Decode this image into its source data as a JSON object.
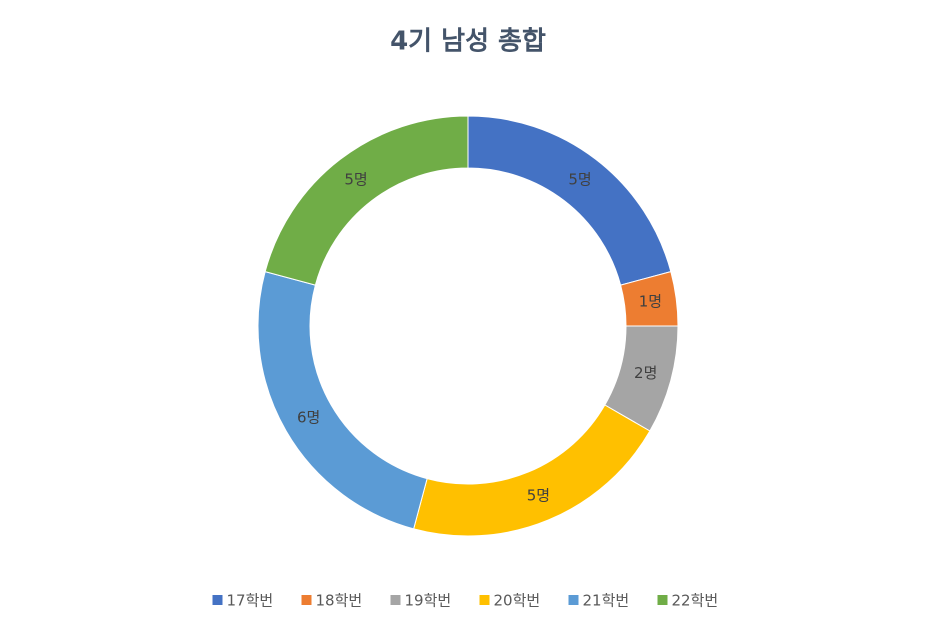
{
  "chart_data": {
    "type": "donut",
    "title": "4기 남성 총합",
    "categories": [
      "17학번",
      "18학번",
      "19학번",
      "20학번",
      "21학번",
      "22학번"
    ],
    "values": [
      5,
      1,
      2,
      5,
      6,
      5
    ],
    "value_labels": [
      "5명",
      "1명",
      "2명",
      "5명",
      "6명",
      "5명"
    ],
    "colors": [
      "#4472c4",
      "#ed7d31",
      "#a5a5a5",
      "#ffc000",
      "#5b9bd5",
      "#70ad47"
    ],
    "legend": "bottom"
  }
}
